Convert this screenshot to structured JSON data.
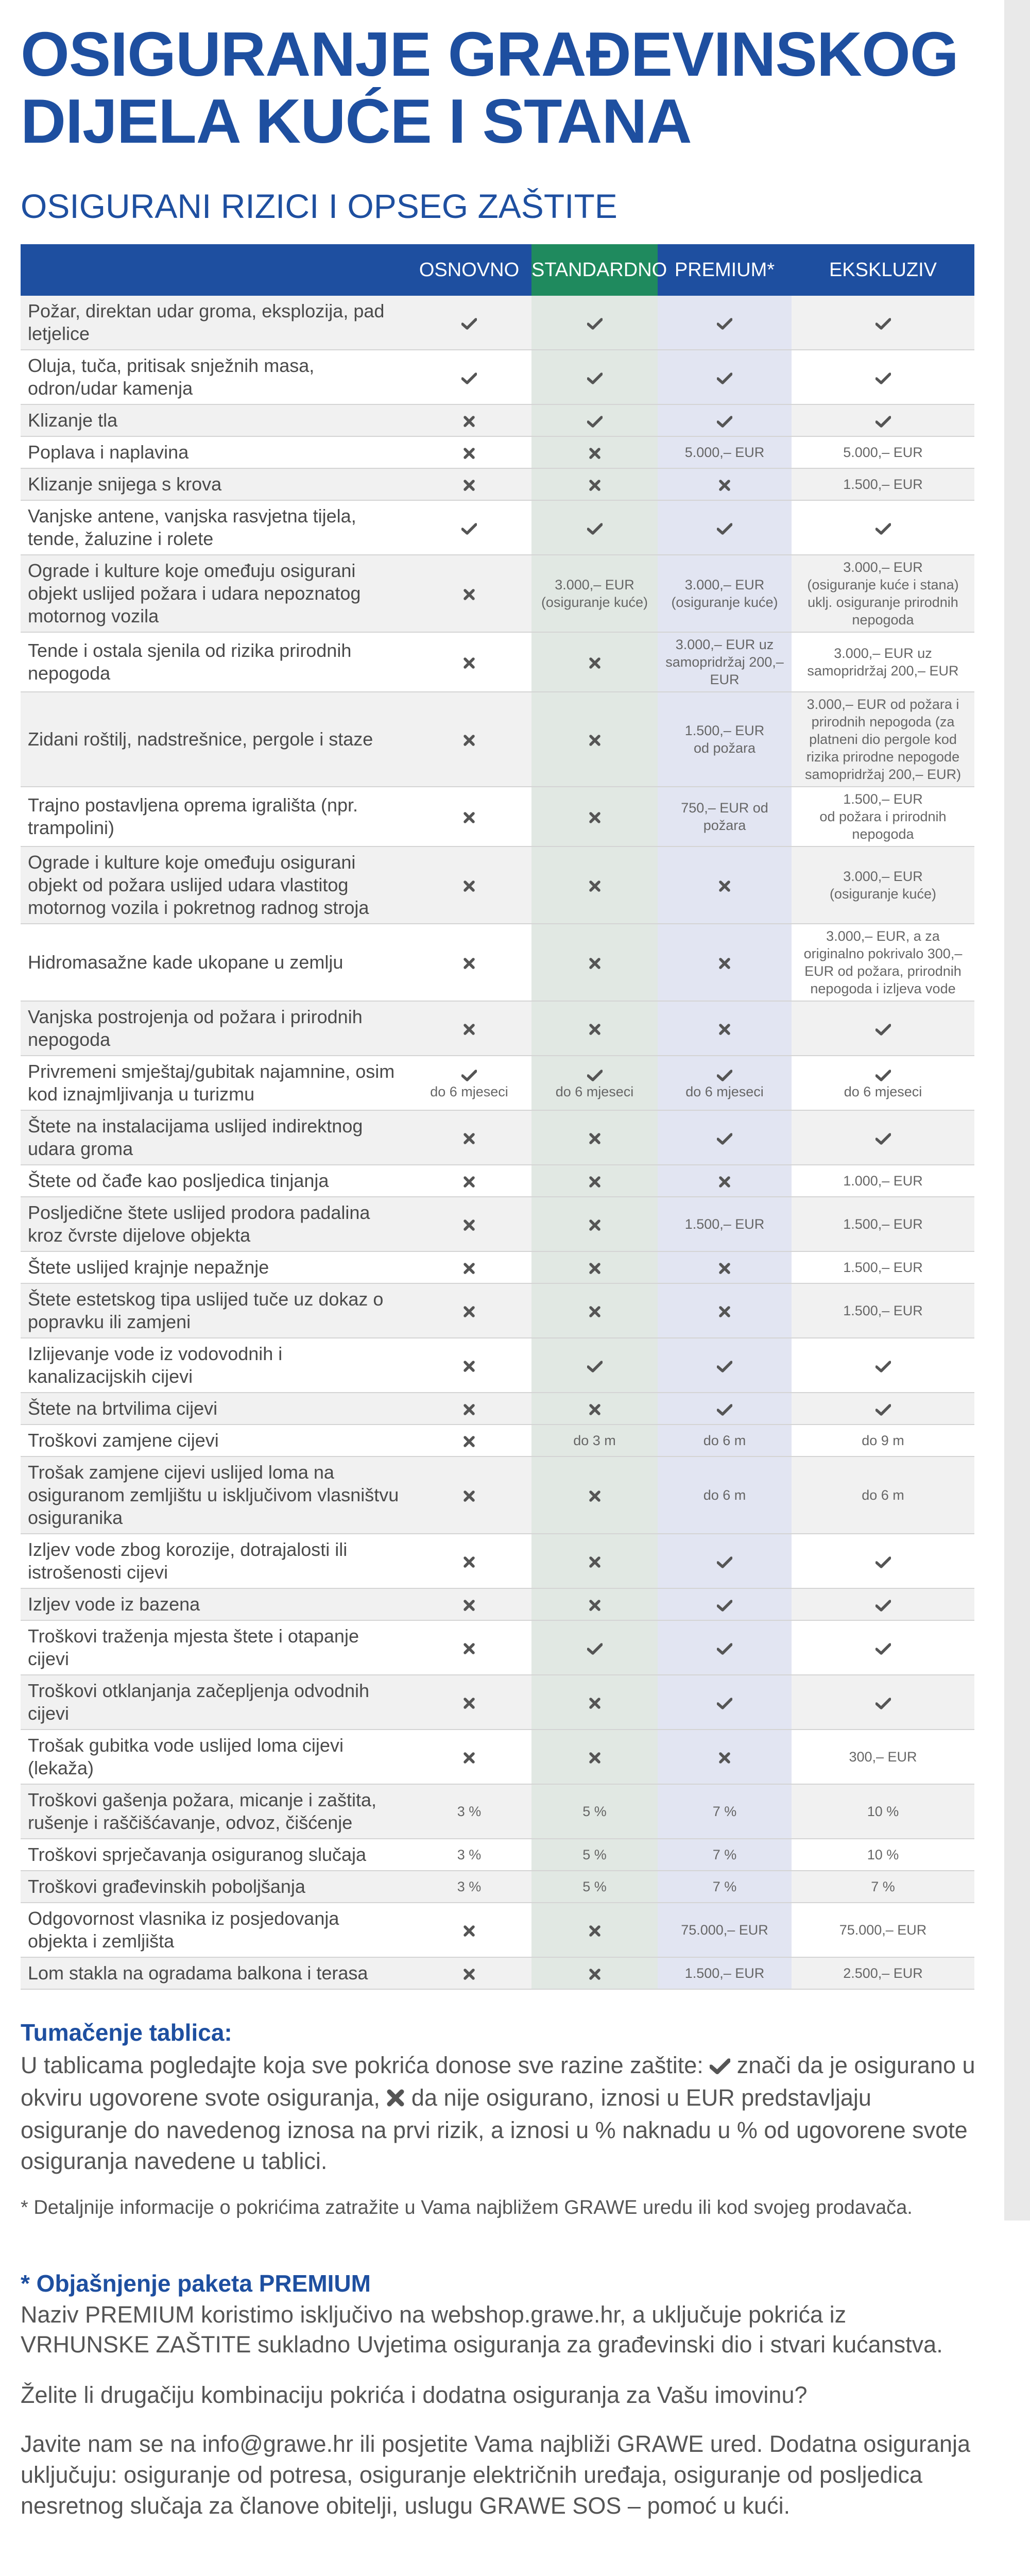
{
  "page": {
    "title_line1": "OSIGURANJE GRAĐEVINSKOG",
    "title_line2": "DIJELA KUĆE I STANA",
    "subtitle": "OSIGURANI RIZICI I OPSEG ZAŠTITE"
  },
  "table": {
    "headers": [
      "OSNOVNO",
      "STANDARDNO",
      "PREMIUM*",
      "EKSKLUZIV"
    ],
    "rows": [
      {
        "label": "Požar, direktan udar groma, eksplozija, pad letjelice",
        "cells": [
          {
            "icon": "check"
          },
          {
            "icon": "check"
          },
          {
            "icon": "check"
          },
          {
            "icon": "check"
          }
        ]
      },
      {
        "label": "Oluja, tuča, pritisak snježnih masa, odron/udar kamenja",
        "cells": [
          {
            "icon": "check"
          },
          {
            "icon": "check"
          },
          {
            "icon": "check"
          },
          {
            "icon": "check"
          }
        ]
      },
      {
        "label": "Klizanje tla",
        "cells": [
          {
            "icon": "cross"
          },
          {
            "icon": "check"
          },
          {
            "icon": "check"
          },
          {
            "icon": "check"
          }
        ]
      },
      {
        "label": "Poplava i naplavina",
        "cells": [
          {
            "icon": "cross"
          },
          {
            "icon": "cross"
          },
          {
            "text": "5.000,– EUR"
          },
          {
            "text": "5.000,– EUR"
          }
        ]
      },
      {
        "label": "Klizanje snijega s krova",
        "cells": [
          {
            "icon": "cross"
          },
          {
            "icon": "cross"
          },
          {
            "icon": "cross"
          },
          {
            "text": "1.500,– EUR"
          }
        ]
      },
      {
        "label": "Vanjske antene, vanjska rasvjetna tijela, tende, žaluzine i rolete",
        "cells": [
          {
            "icon": "check"
          },
          {
            "icon": "check"
          },
          {
            "icon": "check"
          },
          {
            "icon": "check"
          }
        ]
      },
      {
        "label": "Ograde i kulture koje omeđuju osigurani objekt uslijed požara i udara nepoznatog motornog vozila",
        "cells": [
          {
            "icon": "cross"
          },
          {
            "text": "3.000,– EUR",
            "sub": "(osiguranje kuće)"
          },
          {
            "text": "3.000,– EUR",
            "sub": "(osiguranje kuće)"
          },
          {
            "text": "3.000,– EUR",
            "sub": "(osiguranje kuće i stana) uklj. osiguranje prirodnih nepogoda"
          }
        ]
      },
      {
        "label": "Tende i ostala sjenila od rizika prirodnih nepogoda",
        "cells": [
          {
            "icon": "cross"
          },
          {
            "icon": "cross"
          },
          {
            "text": "3.000,– EUR uz samopridržaj 200,– EUR"
          },
          {
            "text": "3.000,– EUR uz samopridržaj 200,– EUR"
          }
        ]
      },
      {
        "label": "Zidani roštilj, nadstrešnice, pergole i staze",
        "cells": [
          {
            "icon": "cross"
          },
          {
            "icon": "cross"
          },
          {
            "text": "1.500,– EUR",
            "sub": "od požara"
          },
          {
            "text": "3.000,– EUR od požara i prirodnih nepogoda (za platneni dio pergole kod rizika prirodne nepogode samopridržaj 200,– EUR)"
          }
        ]
      },
      {
        "label": "Trajno postavljena oprema igrališta (npr. trampolini)",
        "cells": [
          {
            "icon": "cross"
          },
          {
            "icon": "cross"
          },
          {
            "text": "750,– EUR od požara"
          },
          {
            "text": "1.500,– EUR",
            "sub": "od požara i prirodnih nepogoda"
          }
        ]
      },
      {
        "label": "Ograde i kulture koje omeđuju osigurani objekt od požara uslijed udara vlastitog motornog vozila i pokretnog radnog stroja",
        "cells": [
          {
            "icon": "cross"
          },
          {
            "icon": "cross"
          },
          {
            "icon": "cross"
          },
          {
            "text": "3.000,– EUR",
            "sub": "(osiguranje kuće)"
          }
        ]
      },
      {
        "label": "Hidromasažne kade ukopane u zemlju",
        "cells": [
          {
            "icon": "cross"
          },
          {
            "icon": "cross"
          },
          {
            "icon": "cross"
          },
          {
            "text": "3.000,– EUR, a za originalno pokrivalo 300,– EUR od požara, prirodnih nepogoda i izljeva vode"
          }
        ]
      },
      {
        "label": "Vanjska postrojenja od požara i prirodnih nepogoda",
        "cells": [
          {
            "icon": "cross"
          },
          {
            "icon": "cross"
          },
          {
            "icon": "cross"
          },
          {
            "icon": "check"
          }
        ]
      },
      {
        "label": "Privremeni smještaj/gubitak najamnine, osim kod iznajmljivanja u turizmu",
        "cells": [
          {
            "icon": "check",
            "sub": "do 6 mjeseci"
          },
          {
            "icon": "check",
            "sub": "do 6 mjeseci"
          },
          {
            "icon": "check",
            "sub": "do 6 mjeseci"
          },
          {
            "icon": "check",
            "sub": "do 6 mjeseci"
          }
        ]
      },
      {
        "label": "Štete na instalacijama uslijed indirektnog udara groma",
        "cells": [
          {
            "icon": "cross"
          },
          {
            "icon": "cross"
          },
          {
            "icon": "check"
          },
          {
            "icon": "check"
          }
        ]
      },
      {
        "label": "Štete od čađe kao posljedica tinjanja",
        "cells": [
          {
            "icon": "cross"
          },
          {
            "icon": "cross"
          },
          {
            "icon": "cross"
          },
          {
            "text": "1.000,– EUR"
          }
        ]
      },
      {
        "label": "Posljedične štete uslijed prodora padalina kroz čvrste dijelove objekta",
        "cells": [
          {
            "icon": "cross"
          },
          {
            "icon": "cross"
          },
          {
            "text": "1.500,– EUR"
          },
          {
            "text": "1.500,– EUR"
          }
        ]
      },
      {
        "label": "Štete uslijed krajnje nepažnje",
        "cells": [
          {
            "icon": "cross"
          },
          {
            "icon": "cross"
          },
          {
            "icon": "cross"
          },
          {
            "text": "1.500,– EUR"
          }
        ]
      },
      {
        "label": "Štete estetskog tipa uslijed tuče uz dokaz o popravku ili zamjeni",
        "cells": [
          {
            "icon": "cross"
          },
          {
            "icon": "cross"
          },
          {
            "icon": "cross"
          },
          {
            "text": "1.500,– EUR"
          }
        ]
      },
      {
        "label": "Izlijevanje vode iz vodovodnih i kanalizacijskih cijevi",
        "cells": [
          {
            "icon": "cross"
          },
          {
            "icon": "check"
          },
          {
            "icon": "check"
          },
          {
            "icon": "check"
          }
        ]
      },
      {
        "label": "Štete na brtvilima cijevi",
        "cells": [
          {
            "icon": "cross"
          },
          {
            "icon": "cross"
          },
          {
            "icon": "check"
          },
          {
            "icon": "check"
          }
        ]
      },
      {
        "label": "Troškovi zamjene cijevi",
        "cells": [
          {
            "icon": "cross"
          },
          {
            "text": "do 3 m"
          },
          {
            "text": "do 6 m"
          },
          {
            "text": "do 9 m"
          }
        ]
      },
      {
        "label": "Trošak zamjene cijevi uslijed loma na osiguranom zemljištu u isključivom vlasništvu osiguranika",
        "cells": [
          {
            "icon": "cross"
          },
          {
            "icon": "cross"
          },
          {
            "text": "do 6 m"
          },
          {
            "text": "do 6 m"
          }
        ]
      },
      {
        "label": "Izljev vode zbog korozije, dotrajalosti ili istrošenosti cijevi",
        "cells": [
          {
            "icon": "cross"
          },
          {
            "icon": "cross"
          },
          {
            "icon": "check"
          },
          {
            "icon": "check"
          }
        ]
      },
      {
        "label": "Izljev vode iz bazena",
        "cells": [
          {
            "icon": "cross"
          },
          {
            "icon": "cross"
          },
          {
            "icon": "check"
          },
          {
            "icon": "check"
          }
        ]
      },
      {
        "label": "Troškovi traženja mjesta štete i otapanje cijevi",
        "cells": [
          {
            "icon": "cross"
          },
          {
            "icon": "check"
          },
          {
            "icon": "check"
          },
          {
            "icon": "check"
          }
        ]
      },
      {
        "label": "Troškovi otklanjanja začepljenja odvodnih cijevi",
        "cells": [
          {
            "icon": "cross"
          },
          {
            "icon": "cross"
          },
          {
            "icon": "check"
          },
          {
            "icon": "check"
          }
        ]
      },
      {
        "label": "Trošak gubitka vode uslijed loma cijevi (lekaža)",
        "cells": [
          {
            "icon": "cross"
          },
          {
            "icon": "cross"
          },
          {
            "icon": "cross"
          },
          {
            "text": "300,– EUR"
          }
        ]
      },
      {
        "label": "Troškovi gašenja požara, micanje i zaštita, rušenje i raščišćavanje, odvoz, čišćenje",
        "cells": [
          {
            "text": "3 %"
          },
          {
            "text": "5 %"
          },
          {
            "text": "7 %"
          },
          {
            "text": "10 %"
          }
        ]
      },
      {
        "label": "Troškovi sprječavanja osiguranog slučaja",
        "cells": [
          {
            "text": "3 %"
          },
          {
            "text": "5 %"
          },
          {
            "text": "7 %"
          },
          {
            "text": "10 %"
          }
        ]
      },
      {
        "label": "Troškovi građevinskih poboljšanja",
        "cells": [
          {
            "text": "3 %"
          },
          {
            "text": "5 %"
          },
          {
            "text": "7 %"
          },
          {
            "text": "7 %"
          }
        ]
      },
      {
        "label": "Odgovornost vlasnika iz posjedovanja objekta i zemljišta",
        "cells": [
          {
            "icon": "cross"
          },
          {
            "icon": "cross"
          },
          {
            "text": "75.000,– EUR"
          },
          {
            "text": "75.000,– EUR"
          }
        ]
      },
      {
        "label": "Lom stakla na ogradama balkona i terasa",
        "cells": [
          {
            "icon": "cross"
          },
          {
            "icon": "cross"
          },
          {
            "text": "1.500,– EUR"
          },
          {
            "text": "2.500,– EUR"
          }
        ]
      }
    ]
  },
  "legend": {
    "heading": "Tumačenje tablica:",
    "part1": "U tablicama pogledajte koja sve pokrića donose sve razine zaštite: ",
    "part2": " znači da je osigurano u okviru ugovorene svote osiguranja, ",
    "part3": " da nije osigurano, iznosi u EUR predstavljaju osiguranje do navedenog iznosa na prvi rizik, a iznosi u % naknadu u % od ugovorene svote osiguranja navedene u tablici.",
    "note": "* Detaljnije informacije o pokrićima zatražite u Vama najbližem GRAWE uredu ili kod svojeg prodavača."
  },
  "premium": {
    "heading": "* Objašnjenje paketa PREMIUM",
    "text": "Naziv PREMIUM koristimo isključivo na webshop.grawe.hr, a uključuje pokrića iz VRHUNSKE ZAŠTITE sukladno Uvjetima osiguranja za građevinski dio i stvari kućanstva."
  },
  "question": "Želite li drugačiju kombinaciju pokrića i dodatna osiguranja za Vašu imovinu?",
  "contact": "Javite nam se na info@grawe.hr ili posjetite Vama najbliži GRAWE ured. Dodatna osiguranja uključuju: osiguranje od potresa, osiguranje električnih uređaja, osiguranje od posljedica nesretnog slučaja za članove obitelji, uslugu GRAWE SOS – pomoć u kući.",
  "colors": {
    "brand_blue": "#1e4fa0",
    "standard_green": "#1f8a5e",
    "standard_col_bg": "#e1e8e3",
    "premium_col_bg": "#e2e5f2",
    "icon_color": "#555555"
  },
  "icons": {
    "check": "check-icon",
    "cross": "cross-icon"
  }
}
